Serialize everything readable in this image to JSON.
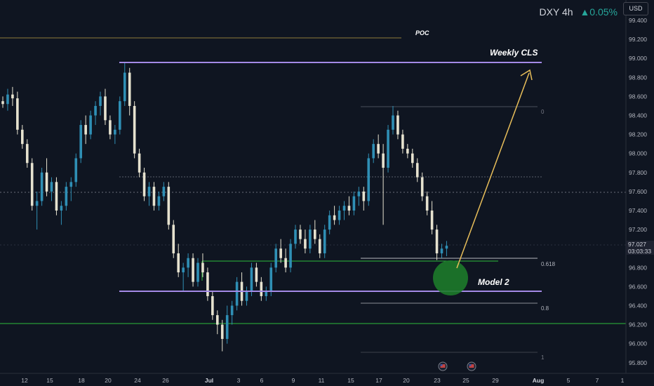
{
  "header": {
    "symbol": "DXY",
    "interval": "4h",
    "change_arrow": "▲",
    "change_pct": "0.05%",
    "currency_button": "USD"
  },
  "price_tag": {
    "price": "97.027",
    "countdown": "03:03:33"
  },
  "chart_data": {
    "type": "candlestick",
    "y_axis": {
      "ticks": [
        "99.400",
        "99.200",
        "99.000",
        "98.800",
        "98.600",
        "98.400",
        "98.200",
        "98.000",
        "97.800",
        "97.600",
        "97.400",
        "97.200",
        "97.000",
        "96.800",
        "96.600",
        "96.400",
        "96.200",
        "96.000",
        "95.800"
      ],
      "ylim": [
        95.75,
        99.5
      ]
    },
    "x_axis": {
      "ticks": [
        "12",
        "15",
        "18",
        "20",
        "24",
        "26",
        "Jul",
        "3",
        "6",
        "9",
        "11",
        "15",
        "17",
        "20",
        "23",
        "25",
        "29",
        "Aug",
        "5",
        "7",
        "1"
      ]
    },
    "candles": [
      [
        98.55,
        98.6,
        98.48,
        98.52
      ],
      [
        98.52,
        98.68,
        98.45,
        98.62
      ],
      [
        98.62,
        98.7,
        98.5,
        98.58
      ],
      [
        98.58,
        98.65,
        98.2,
        98.25
      ],
      [
        98.25,
        98.3,
        98.05,
        98.1
      ],
      [
        98.1,
        98.15,
        97.85,
        97.9
      ],
      [
        97.9,
        97.95,
        97.4,
        97.45
      ],
      [
        97.45,
        97.6,
        97.2,
        97.5
      ],
      [
        97.5,
        97.85,
        97.45,
        97.8
      ],
      [
        97.8,
        97.95,
        97.55,
        97.6
      ],
      [
        97.6,
        97.75,
        97.5,
        97.7
      ],
      [
        97.7,
        97.75,
        97.35,
        97.4
      ],
      [
        97.4,
        97.5,
        97.25,
        97.45
      ],
      [
        97.45,
        97.7,
        97.4,
        97.65
      ],
      [
        97.65,
        97.75,
        97.5,
        97.7
      ],
      [
        97.7,
        98.0,
        97.65,
        97.95
      ],
      [
        97.95,
        98.35,
        97.9,
        98.3
      ],
      [
        98.3,
        98.4,
        98.1,
        98.2
      ],
      [
        98.2,
        98.45,
        98.15,
        98.4
      ],
      [
        98.4,
        98.55,
        98.3,
        98.5
      ],
      [
        98.5,
        98.65,
        98.4,
        98.6
      ],
      [
        98.6,
        98.68,
        98.3,
        98.35
      ],
      [
        98.35,
        98.4,
        98.15,
        98.2
      ],
      [
        98.2,
        98.3,
        98.1,
        98.25
      ],
      [
        98.25,
        98.6,
        98.2,
        98.55
      ],
      [
        98.55,
        98.95,
        98.5,
        98.85
      ],
      [
        98.85,
        98.9,
        98.4,
        98.5
      ],
      [
        98.5,
        98.55,
        97.95,
        98.0
      ],
      [
        98.0,
        98.05,
        97.75,
        97.8
      ],
      [
        97.8,
        97.85,
        97.5,
        97.55
      ],
      [
        97.55,
        97.7,
        97.45,
        97.65
      ],
      [
        97.65,
        97.7,
        97.4,
        97.45
      ],
      [
        97.45,
        97.6,
        97.4,
        97.55
      ],
      [
        97.55,
        97.7,
        97.5,
        97.65
      ],
      [
        97.65,
        97.7,
        97.2,
        97.25
      ],
      [
        97.25,
        97.3,
        96.9,
        96.95
      ],
      [
        96.95,
        97.05,
        96.7,
        96.75
      ],
      [
        96.75,
        96.85,
        96.55,
        96.8
      ],
      [
        96.8,
        96.95,
        96.7,
        96.9
      ],
      [
        96.9,
        96.95,
        96.6,
        96.65
      ],
      [
        96.65,
        96.9,
        96.6,
        96.85
      ],
      [
        96.85,
        96.95,
        96.7,
        96.75
      ],
      [
        96.75,
        96.8,
        96.45,
        96.5
      ],
      [
        96.5,
        96.55,
        96.25,
        96.3
      ],
      [
        96.3,
        96.35,
        96.1,
        96.2
      ],
      [
        96.2,
        96.25,
        95.92,
        96.05
      ],
      [
        96.05,
        96.4,
        96.0,
        96.3
      ],
      [
        96.3,
        96.45,
        96.2,
        96.4
      ],
      [
        96.4,
        96.7,
        96.35,
        96.65
      ],
      [
        96.65,
        96.75,
        96.4,
        96.45
      ],
      [
        96.45,
        96.6,
        96.4,
        96.55
      ],
      [
        96.55,
        96.85,
        96.5,
        96.8
      ],
      [
        96.8,
        96.85,
        96.6,
        96.65
      ],
      [
        96.65,
        96.7,
        96.45,
        96.5
      ],
      [
        96.5,
        96.6,
        96.45,
        96.55
      ],
      [
        96.55,
        96.85,
        96.5,
        96.8
      ],
      [
        96.8,
        97.05,
        96.75,
        97.0
      ],
      [
        97.0,
        97.1,
        96.85,
        96.9
      ],
      [
        96.9,
        97.0,
        96.75,
        96.8
      ],
      [
        96.8,
        97.1,
        96.75,
        97.05
      ],
      [
        97.05,
        97.25,
        97.0,
        97.2
      ],
      [
        97.2,
        97.25,
        97.05,
        97.1
      ],
      [
        97.1,
        97.2,
        96.95,
        97.0
      ],
      [
        97.0,
        97.25,
        96.95,
        97.2
      ],
      [
        97.2,
        97.3,
        97.05,
        97.1
      ],
      [
        97.1,
        97.15,
        96.9,
        96.95
      ],
      [
        96.95,
        97.25,
        96.9,
        97.2
      ],
      [
        97.2,
        97.4,
        97.15,
        97.35
      ],
      [
        97.35,
        97.45,
        97.25,
        97.3
      ],
      [
        97.3,
        97.45,
        97.25,
        97.4
      ],
      [
        97.4,
        97.5,
        97.3,
        97.45
      ],
      [
        97.45,
        97.55,
        97.35,
        97.4
      ],
      [
        97.4,
        97.6,
        97.35,
        97.55
      ],
      [
        97.55,
        97.65,
        97.45,
        97.6
      ],
      [
        97.6,
        97.65,
        97.4,
        97.5
      ],
      [
        97.5,
        98.0,
        97.45,
        97.95
      ],
      [
        97.95,
        98.15,
        97.9,
        98.1
      ],
      [
        98.1,
        98.2,
        97.95,
        98.0
      ],
      [
        98.0,
        98.1,
        97.25,
        97.85
      ],
      [
        97.85,
        98.3,
        97.8,
        98.25
      ],
      [
        98.25,
        98.5,
        98.2,
        98.4
      ],
      [
        98.4,
        98.45,
        98.15,
        98.2
      ],
      [
        98.2,
        98.25,
        98.0,
        98.05
      ],
      [
        98.05,
        98.1,
        97.95,
        98.0
      ],
      [
        98.0,
        98.05,
        97.85,
        97.9
      ],
      [
        97.9,
        97.95,
        97.7,
        97.75
      ],
      [
        97.75,
        97.8,
        97.5,
        97.55
      ],
      [
        97.55,
        97.6,
        97.35,
        97.4
      ],
      [
        97.4,
        97.5,
        97.15,
        97.2
      ],
      [
        97.2,
        97.25,
        96.88,
        96.95
      ],
      [
        96.95,
        97.05,
        96.9,
        97.0
      ],
      [
        97.0,
        97.08,
        96.92,
        97.03
      ]
    ]
  },
  "levels": {
    "poc_label": "POC",
    "weekly_label": "Weekly CLS",
    "model_label": "Model 2",
    "fib_0": "0",
    "fib_0618": "0.618",
    "fib_08": "0.8",
    "fib_1": "1"
  },
  "colors": {
    "background": "#0f1521",
    "bull": "#2f8fb5",
    "bear": "#e6e2cf",
    "purple": "#a48ae6",
    "green_line": "#2dbd3a",
    "gold": "#e8be5a",
    "poc": "#8f7a3a",
    "circle": "#1d7a2a"
  }
}
